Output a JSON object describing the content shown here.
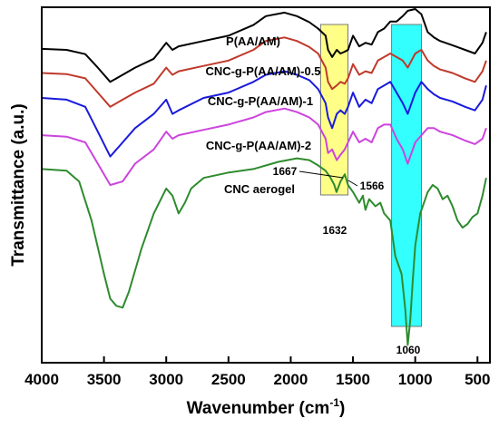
{
  "chart_data": {
    "type": "line",
    "xlabel": "Wavenumber (cm",
    "xlabel_sup": "-1",
    "xlabel_tail": ")",
    "ylabel": "Transmittance (a.u.)",
    "x_reversed": true,
    "xlim": [
      4000,
      400
    ],
    "x_ticks": [
      "4000",
      "3500",
      "3000",
      "2500",
      "2000",
      "1500",
      "1000",
      "500"
    ],
    "highlights": [
      {
        "from": 1760,
        "to": 1540,
        "color": "#ffff88"
      },
      {
        "from": 1190,
        "to": 950,
        "color": "#33ffff"
      }
    ],
    "annotations": [
      "1667",
      "1566",
      "1632",
      "1060"
    ],
    "series": [
      {
        "name": "P(AA/AM)",
        "color": "#000000",
        "points": [
          [
            4000,
            0.883
          ],
          [
            3800,
            0.88
          ],
          [
            3650,
            0.868
          ],
          [
            3550,
            0.83
          ],
          [
            3450,
            0.79
          ],
          [
            3350,
            0.81
          ],
          [
            3250,
            0.83
          ],
          [
            3100,
            0.855
          ],
          [
            3000,
            0.9
          ],
          [
            2950,
            0.88
          ],
          [
            2900,
            0.89
          ],
          [
            2700,
            0.905
          ],
          [
            2500,
            0.92
          ],
          [
            2300,
            0.95
          ],
          [
            2200,
            0.975
          ],
          [
            2050,
            0.985
          ],
          [
            1950,
            0.975
          ],
          [
            1850,
            0.958
          ],
          [
            1780,
            0.94
          ],
          [
            1720,
            0.92
          ],
          [
            1700,
            0.88
          ],
          [
            1667,
            0.86
          ],
          [
            1630,
            0.88
          ],
          [
            1600,
            0.87
          ],
          [
            1566,
            0.875
          ],
          [
            1540,
            0.88
          ],
          [
            1500,
            0.92
          ],
          [
            1450,
            0.89
          ],
          [
            1400,
            0.9
          ],
          [
            1350,
            0.895
          ],
          [
            1300,
            0.93
          ],
          [
            1250,
            0.94
          ],
          [
            1200,
            0.96
          ],
          [
            1150,
            0.96
          ],
          [
            1100,
            0.975
          ],
          [
            1060,
            0.99
          ],
          [
            1000,
            0.995
          ],
          [
            950,
            0.98
          ],
          [
            900,
            0.93
          ],
          [
            850,
            0.915
          ],
          [
            800,
            0.905
          ],
          [
            700,
            0.893
          ],
          [
            600,
            0.88
          ],
          [
            520,
            0.87
          ],
          [
            460,
            0.9
          ],
          [
            430,
            0.93
          ]
        ]
      },
      {
        "name": "CNC-g-P(AA/AM)-0.5",
        "color": "#c0392b",
        "points": [
          [
            4000,
            0.815
          ],
          [
            3800,
            0.812
          ],
          [
            3650,
            0.8
          ],
          [
            3550,
            0.76
          ],
          [
            3450,
            0.72
          ],
          [
            3350,
            0.74
          ],
          [
            3250,
            0.76
          ],
          [
            3100,
            0.785
          ],
          [
            3000,
            0.83
          ],
          [
            2950,
            0.81
          ],
          [
            2900,
            0.82
          ],
          [
            2700,
            0.835
          ],
          [
            2500,
            0.85
          ],
          [
            2300,
            0.88
          ],
          [
            2200,
            0.905
          ],
          [
            2050,
            0.915
          ],
          [
            1950,
            0.905
          ],
          [
            1850,
            0.888
          ],
          [
            1780,
            0.87
          ],
          [
            1720,
            0.83
          ],
          [
            1700,
            0.79
          ],
          [
            1667,
            0.77
          ],
          [
            1630,
            0.78
          ],
          [
            1600,
            0.79
          ],
          [
            1566,
            0.785
          ],
          [
            1540,
            0.8
          ],
          [
            1500,
            0.84
          ],
          [
            1450,
            0.81
          ],
          [
            1400,
            0.82
          ],
          [
            1350,
            0.815
          ],
          [
            1300,
            0.85
          ],
          [
            1250,
            0.86
          ],
          [
            1200,
            0.87
          ],
          [
            1150,
            0.86
          ],
          [
            1100,
            0.85
          ],
          [
            1060,
            0.83
          ],
          [
            1000,
            0.87
          ],
          [
            950,
            0.88
          ],
          [
            900,
            0.85
          ],
          [
            850,
            0.835
          ],
          [
            800,
            0.825
          ],
          [
            700,
            0.815
          ],
          [
            600,
            0.8
          ],
          [
            520,
            0.79
          ],
          [
            460,
            0.82
          ],
          [
            430,
            0.85
          ]
        ]
      },
      {
        "name": "CNC-g-P(AA/AM)-1",
        "color": "#1a1adc",
        "points": [
          [
            4000,
            0.745
          ],
          [
            3800,
            0.74
          ],
          [
            3650,
            0.72
          ],
          [
            3550,
            0.65
          ],
          [
            3450,
            0.58
          ],
          [
            3350,
            0.62
          ],
          [
            3250,
            0.66
          ],
          [
            3100,
            0.7
          ],
          [
            3000,
            0.74
          ],
          [
            2950,
            0.7
          ],
          [
            2900,
            0.71
          ],
          [
            2700,
            0.745
          ],
          [
            2500,
            0.76
          ],
          [
            2300,
            0.79
          ],
          [
            2200,
            0.81
          ],
          [
            2050,
            0.82
          ],
          [
            1950,
            0.81
          ],
          [
            1850,
            0.795
          ],
          [
            1780,
            0.77
          ],
          [
            1720,
            0.73
          ],
          [
            1700,
            0.69
          ],
          [
            1667,
            0.66
          ],
          [
            1630,
            0.7
          ],
          [
            1600,
            0.71
          ],
          [
            1566,
            0.7
          ],
          [
            1540,
            0.72
          ],
          [
            1500,
            0.76
          ],
          [
            1450,
            0.72
          ],
          [
            1400,
            0.74
          ],
          [
            1350,
            0.73
          ],
          [
            1300,
            0.77
          ],
          [
            1250,
            0.78
          ],
          [
            1200,
            0.79
          ],
          [
            1150,
            0.76
          ],
          [
            1100,
            0.73
          ],
          [
            1060,
            0.7
          ],
          [
            1000,
            0.76
          ],
          [
            950,
            0.79
          ],
          [
            900,
            0.77
          ],
          [
            850,
            0.755
          ],
          [
            800,
            0.745
          ],
          [
            700,
            0.735
          ],
          [
            600,
            0.72
          ],
          [
            520,
            0.71
          ],
          [
            460,
            0.74
          ],
          [
            430,
            0.78
          ]
        ]
      },
      {
        "name": "CNC-g-P(AA/AM)-2",
        "color": "#cc44dd",
        "points": [
          [
            4000,
            0.64
          ],
          [
            3800,
            0.636
          ],
          [
            3650,
            0.62
          ],
          [
            3550,
            0.56
          ],
          [
            3450,
            0.5
          ],
          [
            3350,
            0.51
          ],
          [
            3250,
            0.56
          ],
          [
            3100,
            0.6
          ],
          [
            3000,
            0.65
          ],
          [
            2950,
            0.63
          ],
          [
            2900,
            0.64
          ],
          [
            2700,
            0.655
          ],
          [
            2500,
            0.67
          ],
          [
            2300,
            0.69
          ],
          [
            2200,
            0.705
          ],
          [
            2050,
            0.715
          ],
          [
            1950,
            0.705
          ],
          [
            1850,
            0.69
          ],
          [
            1780,
            0.67
          ],
          [
            1720,
            0.63
          ],
          [
            1700,
            0.59
          ],
          [
            1667,
            0.6
          ],
          [
            1630,
            0.57
          ],
          [
            1600,
            0.585
          ],
          [
            1566,
            0.6
          ],
          [
            1540,
            0.62
          ],
          [
            1500,
            0.65
          ],
          [
            1450,
            0.62
          ],
          [
            1400,
            0.63
          ],
          [
            1350,
            0.62
          ],
          [
            1300,
            0.66
          ],
          [
            1250,
            0.67
          ],
          [
            1200,
            0.67
          ],
          [
            1150,
            0.63
          ],
          [
            1100,
            0.6
          ],
          [
            1060,
            0.56
          ],
          [
            1000,
            0.62
          ],
          [
            950,
            0.64
          ],
          [
            900,
            0.66
          ],
          [
            850,
            0.66
          ],
          [
            800,
            0.65
          ],
          [
            700,
            0.64
          ],
          [
            600,
            0.625
          ],
          [
            520,
            0.615
          ],
          [
            460,
            0.63
          ],
          [
            430,
            0.66
          ]
        ]
      },
      {
        "name": "CNC aerogel",
        "color": "#2e8b2e",
        "points": [
          [
            4000,
            0.545
          ],
          [
            3800,
            0.54
          ],
          [
            3700,
            0.51
          ],
          [
            3600,
            0.4
          ],
          [
            3500,
            0.25
          ],
          [
            3450,
            0.18
          ],
          [
            3400,
            0.16
          ],
          [
            3350,
            0.155
          ],
          [
            3300,
            0.2
          ],
          [
            3200,
            0.32
          ],
          [
            3100,
            0.42
          ],
          [
            3000,
            0.49
          ],
          [
            2950,
            0.47
          ],
          [
            2900,
            0.42
          ],
          [
            2850,
            0.45
          ],
          [
            2800,
            0.49
          ],
          [
            2700,
            0.52
          ],
          [
            2500,
            0.535
          ],
          [
            2300,
            0.545
          ],
          [
            2100,
            0.565
          ],
          [
            1950,
            0.575
          ],
          [
            1850,
            0.57
          ],
          [
            1780,
            0.555
          ],
          [
            1720,
            0.54
          ],
          [
            1680,
            0.52
          ],
          [
            1650,
            0.5
          ],
          [
            1632,
            0.48
          ],
          [
            1600,
            0.51
          ],
          [
            1566,
            0.53
          ],
          [
            1540,
            0.5
          ],
          [
            1500,
            0.48
          ],
          [
            1450,
            0.45
          ],
          [
            1420,
            0.47
          ],
          [
            1400,
            0.43
          ],
          [
            1370,
            0.46
          ],
          [
            1320,
            0.44
          ],
          [
            1280,
            0.45
          ],
          [
            1250,
            0.42
          ],
          [
            1200,
            0.4
          ],
          [
            1160,
            0.3
          ],
          [
            1110,
            0.25
          ],
          [
            1080,
            0.15
          ],
          [
            1060,
            0.05
          ],
          [
            1040,
            0.12
          ],
          [
            1020,
            0.23
          ],
          [
            1000,
            0.33
          ],
          [
            960,
            0.42
          ],
          [
            900,
            0.48
          ],
          [
            860,
            0.5
          ],
          [
            820,
            0.49
          ],
          [
            780,
            0.46
          ],
          [
            740,
            0.47
          ],
          [
            700,
            0.44
          ],
          [
            660,
            0.4
          ],
          [
            620,
            0.38
          ],
          [
            580,
            0.39
          ],
          [
            540,
            0.41
          ],
          [
            500,
            0.42
          ],
          [
            460,
            0.47
          ],
          [
            430,
            0.52
          ]
        ]
      }
    ]
  }
}
